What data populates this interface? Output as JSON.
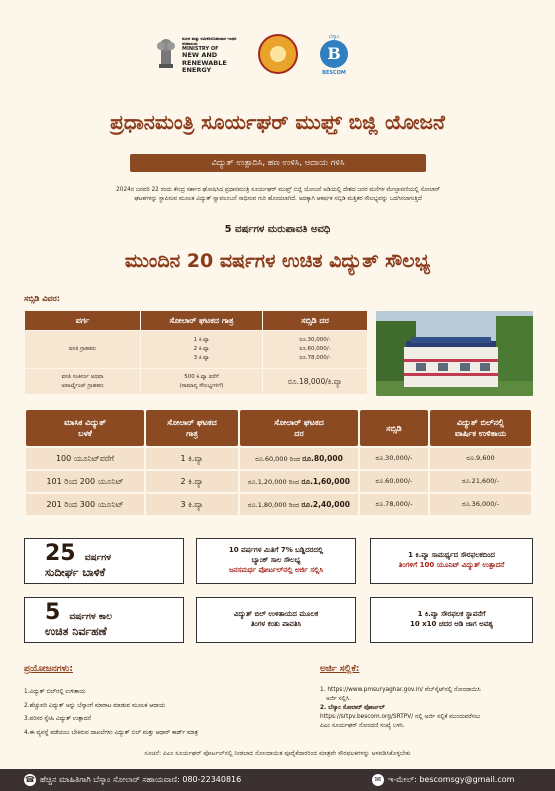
{
  "header": {
    "ministry_kn": "ನವೀನ ಮತ್ತು ನವೀಕರಿಸಬಹುದಾದ ಇಂಧನ ಸಚಿವಾಲಯ",
    "ministry_line1": "MINISTRY OF",
    "ministry_line2": "NEW AND",
    "ministry_line3": "RENEWABLE ENERGY",
    "bescom_top": "ಬೆಸ್ಕಾಂ",
    "bescom_label": "BESCOM",
    "bescom_letter": "B"
  },
  "title": "ಪ್ರಧಾನಮಂತ್ರಿ ಸೂರ್ಯಘರ್ ಮುಫ್ತ್ ಬಿಜ್ಲಿ ಯೋಜನೆ",
  "subtitle": "ವಿದ್ಯುತ್ ಉತ್ಪಾದಿಸಿ, ಹಣ ಉಳಿಸಿ, ಆದಾಯ ಗಳಿಸಿ",
  "intro_line1": "2024ರ ಜನವರಿ 22 ರಂದು ಕೇಂದ್ರ ಸರ್ಕಾರ ಘೋಷಿಸಿದ ಪ್ರಧಾನಮಂತ್ರಿ ಸೂರ್ಯಘರ್ ಮುಫ್ತ್ ಬಿಜ್ಲಿ ಯೋಜನೆ ಅಡಿಯಲ್ಲಿ ದೇಶದ ಜನರ ಮನೆಗಳ ಮೇಲ್ಛಾವಣಿಯಲ್ಲಿ ಸೋಲಾರ್",
  "intro_line2": "ಘಟಕಗಳನ್ನು ಸ್ಥಾಪಿಸುವ ಮೂಲಕ ವಿದ್ಯುತ್ ಸ್ವಾವಲಂಬನೆ ಸಾಧಿಸುವ ಗುರಿ ಹೊಂದಲಾಗಿದೆ. ಅದಕ್ಕಾಗಿ ಆಕರ್ಷಕ ಸಬ್ಸಿಡಿ ಮತ್ತಿತರ ಸೌಲಭ್ಯವನ್ನು ಒದಗಿಸಲಾಗುತ್ತಿದೆ",
  "repayment": "5 ವರ್ಷಗಳ ಮರುಪಾವತಿ ಅವಧಿ",
  "free_power": "ಮುಂದಿನ 20 ವರ್ಷಗಳ ಉಚಿತ ವಿದ್ಯುತ್ ಸೌಲಭ್ಯ",
  "subsidy_heading": "ಸಬ್ಸಿಡಿ ವಿವರ:",
  "subsidy_table": {
    "headers": [
      "ವರ್ಗ",
      "ಸೋಲಾರ್ ಘಟಕದ ಗಾತ್ರ",
      "ಸಬ್ಸಿಡಿ ದರ"
    ],
    "row1": {
      "category": "ವಸತಿ ಗ್ರಾಹಕರು",
      "sizes": [
        "1 ಕಿ.ವ್ಯಾ",
        "2 ಕಿ.ವ್ಯಾ",
        "3 ಕಿ.ವ್ಯಾ"
      ],
      "rates": [
        "ರೂ.30,000/-",
        "ರೂ.60,000/-",
        "ರೂ.78,000/-"
      ]
    },
    "row2": {
      "category_1": "ವಸತಿ ಸಂಕೀರ್ಣ ಅಥವಾ",
      "category_2": "ಅಪಾರ್ಟ್ಮೆಂಟ್ ಗ್ರಾಹಕರು",
      "size_1": "500 ಕಿ.ವ್ಯಾ ವರೆಗೆ",
      "size_2": "(ಸಾಮಾನ್ಯ ಸೌಲಭ್ಯಗಳಿಗೆ)",
      "rate": "ರೂ.18,000/ಕಿ.ವ್ಯಾ"
    }
  },
  "usage_table": {
    "headers": [
      {
        "l1": "ಮಾಸಿಕ ವಿದ್ಯುತ್",
        "l2": "ಬಳಕೆ"
      },
      {
        "l1": "ಸೋಲಾರ್ ಘಟಕದ",
        "l2": "ಗಾತ್ರ"
      },
      {
        "l1": "ಸೋಲಾರ್ ಘಟಕದ",
        "l2": "ದರ"
      },
      {
        "l1": "ಸಬ್ಸಿಡಿ",
        "l2": ""
      },
      {
        "l1": "ವಿದ್ಯುತ್ ಬಿಲ್‌ನಲ್ಲಿ",
        "l2": "ವಾರ್ಷಿಕ ಉಳಿತಾಯ"
      }
    ],
    "rows": [
      {
        "usage": "100 ಯೂನಿಟ್‌ವರೆಗೆ",
        "size": "1 ಕಿ.ವ್ಯಾ",
        "cost_from": "ರೂ.60,000 ರಿಂದ",
        "cost_to": "ರೂ.80,000",
        "subsidy": "ರೂ.30,000/-",
        "saving": "ರೂ.9,600"
      },
      {
        "usage": "101 ರಿಂದ 200 ಯೂನಿಟ್",
        "size": "2 ಕಿ.ವ್ಯಾ",
        "cost_from": "ರೂ.1,20,000 ರಿಂದ",
        "cost_to": "ರೂ.1,60,000",
        "subsidy": "ರೂ.60,000/-",
        "saving": "ರೂ.21,600/-"
      },
      {
        "usage": "201 ರಿಂದ 300 ಯೂನಿಟ್",
        "size": "3 ಕಿ.ವ್ಯಾ",
        "cost_from": "ರೂ.1,80,000 ರಿಂದ",
        "cost_to": "ರೂ.2,40,000",
        "subsidy": "ರೂ.78,000/-",
        "saving": "ರೂ.36,000/-"
      }
    ]
  },
  "features": {
    "f1_num": "25",
    "f1_l1": "ವರ್ಷಗಳ",
    "f1_l2": "ಸುದೀರ್ಘ ಬಾಳಿಕೆ",
    "f2_l1": "10 ವರ್ಷಗಳ ಮಿತಿಗೆ 7% ಬಡ್ಡಿದರದಲ್ಲಿ",
    "f2_l2": "ಬ್ಯಾಂಕ್ ಸಾಲ ಸೌಲಭ್ಯ",
    "f2_l3": "ಜನಸಮರ್ಥ ಪೋರ್ಟಲ್‌ನಲ್ಲಿ ಅರ್ಜಿ ಸಲ್ಲಿಸಿ",
    "f3_l1": "1 ಕಿ.ವ್ಯಾ ಸಾಮರ್ಥ್ಯದ ಸೌರಫಲಕದಿಂದ",
    "f3_l2": "ತಿಂಗಳಿಗೆ 100 ಯೂನಿಟ್ ವಿದ್ಯುತ್ ಉತ್ಪಾದನೆ",
    "f4_num": "5",
    "f4_l1": "ವರ್ಷಗಳ ಕಾಲ",
    "f4_l2": "ಉಚಿತ ನಿರ್ವಹಣೆ",
    "f5_l1": "ವಿದ್ಯುತ್ ಬಿಲ್ ಉಳಿತಾಯದ ಮೂಲಕ",
    "f5_l2": "ತಿಂಗಳ ಕಂತು ಪಾವತಿಸಿ",
    "f6_l1": "1 ಕಿ.ವ್ಯಾ ಸೌರಫಲಕ ಸ್ಥಾಪನೆಗೆ",
    "f6_l2": "10 x10 ಚದರ ಅಡಿ ಜಾಗ ಅವಶ್ಯ"
  },
  "benefits": {
    "title": "ಪ್ರಯೋಜನಗಳು:",
    "items": [
      "1.ವಿದ್ಯುತ್ ಬಿಲ್‌ನಲ್ಲಿ ಉಳಿತಾಯ",
      "2.ಹೆಚ್ಚುವರಿ ವಿದ್ಯುತ್ ಅನ್ನು ಬೆಸ್ಕಾಂಗೆ ಮಾರಾಟ ಮಾಡುವ ಮೂಲಕ ಆದಾಯ",
      "3.ಪರಿಸರ ಸ್ನೇಹಿ ವಿದ್ಯುತ್ ಉತ್ಪಾದನೆ",
      "4.ಈ ವ್ಯವಸ್ಥೆ ಪಡೆಯಲು ಬೇಕಿರುವ ದಾಖಲೆಗಳು ವಿದ್ಯುತ್ ಬಿಲ್ ಮತ್ತು ಆಧಾರ್ ಕಾರ್ಡ್ ಮಾತ್ರ"
    ]
  },
  "apply": {
    "title": "ಅರ್ಜಿ ಸಲ್ಲಿಕೆ:",
    "l1": "1. https://www.pmsuryaghar.gov.in/  ವೆಬ್‌ಸೈಟ್‌ನಲ್ಲಿ ನೋಂದಾಯಿಸಿ",
    "l2": "ಅರ್ಜಿ ಸಲ್ಲಿಸಿ.",
    "l3": "2. ಬೆಸ್ಕಾಂ ಸೋಲಾರ್ ಪೋರ್ಟಲ್",
    "l4": "https://srtpv.bescom.org/SRTPV/  ನಲ್ಲಿ ಅರ್ಜಿ ಸಲ್ಲಿಕೆ ಮುಂದುವರೆಸಲು",
    "l5": "ಪಿಎಂ ಸೂರ್ಯಘರ್ ನೋಂದಣಿ ಸಂಖ್ಯೆ ಬಳಸಿ."
  },
  "note": "ಸೂಚನೆ: ಪಿಎಂ ಸೂರ್ಯಘರ್ ಪೋರ್ಟಲ್‌ನಲ್ಲಿ ನೀಡಲಾದ ನೋಂದಾಯಿತ ಪೂರೈಕೆದಾರರಿಂದ ಮಾತ್ರವೇ ಸೌರಫಲಕಗಳನ್ನು ಅಳವಡಿಸಿಕೊಳ್ಳಬೇಕು",
  "footer": {
    "helpline": "ಹೆಚ್ಚಿನ ಮಾಹಿತಿಗಾಗಿ ಬೆಸ್ಕಾಂ ಸೋಲಾರ್ ಸಹಾಯವಾಣಿ: 080-22340816",
    "email": "ಇ-ಮೇಲ್: bescomsgy@gmail.com"
  },
  "colors": {
    "brown": "#8b4a22",
    "title_brown": "#8b3a1a",
    "cream": "#fdf6ea",
    "footer": "#3a3130"
  }
}
